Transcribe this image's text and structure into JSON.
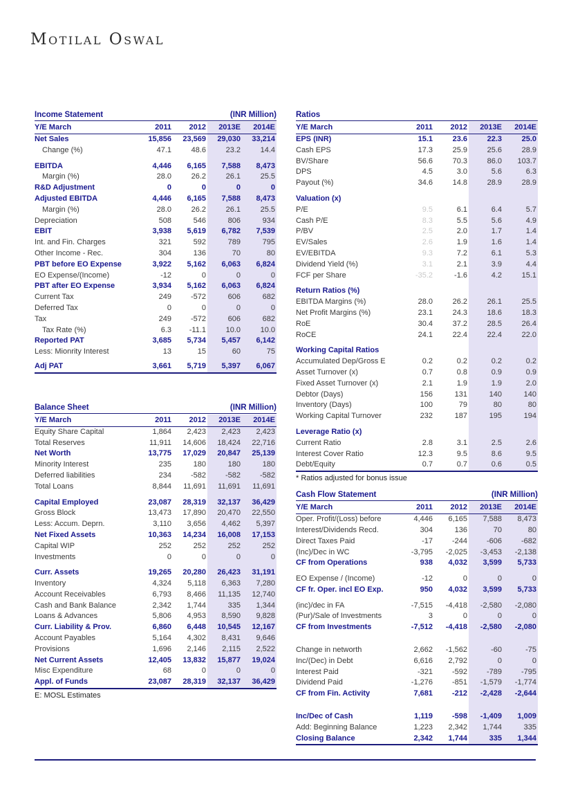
{
  "page": {
    "logo": "Motilal Oswal"
  },
  "colors": {
    "navy_text": "#1a1a8f",
    "rule_line": "#1b1b7c",
    "estimate_band": "#e4e1f4",
    "muted_value": "#c9c9c9",
    "body_text": "#383838"
  },
  "tables": {
    "income": {
      "title": "Income Statement",
      "unit": "(INR Million)",
      "columns": [
        "Y/E March",
        "2011",
        "2012",
        "2013E",
        "2014E"
      ],
      "rows": [
        {
          "label": "Net Sales",
          "values": [
            "15,856",
            "23,569",
            "29,030",
            "33,214"
          ],
          "cls": "bold"
        },
        {
          "label": "Change (%)",
          "values": [
            "47.1",
            "48.6",
            "23.2",
            "14.4"
          ],
          "cls": "indent"
        },
        {
          "cls": "spacer"
        },
        {
          "label": "EBITDA",
          "values": [
            "4,446",
            "6,165",
            "7,588",
            "8,473"
          ],
          "cls": "bold"
        },
        {
          "label": "Margin (%)",
          "values": [
            "28.0",
            "26.2",
            "26.1",
            "25.5"
          ],
          "cls": "indent"
        },
        {
          "label": "R&D Adjustment",
          "values": [
            "0",
            "0",
            "0",
            "0"
          ],
          "cls": "bold"
        },
        {
          "label": "Adjusted EBITDA",
          "values": [
            "4,446",
            "6,165",
            "7,588",
            "8,473"
          ],
          "cls": "bold"
        },
        {
          "label": "Margin (%)",
          "values": [
            "28.0",
            "26.2",
            "26.1",
            "25.5"
          ],
          "cls": "indent"
        },
        {
          "label": "Depreciation",
          "values": [
            "508",
            "546",
            "806",
            "934"
          ],
          "cls": "plain"
        },
        {
          "label": "EBIT",
          "values": [
            "3,938",
            "5,619",
            "6,782",
            "7,539"
          ],
          "cls": "bold"
        },
        {
          "label": "Int. and Fin. Charges",
          "values": [
            "321",
            "592",
            "789",
            "795"
          ],
          "cls": "plain"
        },
        {
          "label": "Other Income - Rec.",
          "values": [
            "304",
            "136",
            "70",
            "80"
          ],
          "cls": "plain"
        },
        {
          "label": "PBT before EO Expense",
          "values": [
            "3,922",
            "5,162",
            "6,063",
            "6,824"
          ],
          "cls": "bold"
        },
        {
          "label": "EO Expense/(Income)",
          "values": [
            "-12",
            "0",
            "0",
            "0"
          ],
          "cls": "plain"
        },
        {
          "label": "PBT after EO Expense",
          "values": [
            "3,934",
            "5,162",
            "6,063",
            "6,824"
          ],
          "cls": "bold"
        },
        {
          "label": "Current Tax",
          "values": [
            "249",
            "-572",
            "606",
            "682"
          ],
          "cls": "plain"
        },
        {
          "label": "Deferred Tax",
          "values": [
            "0",
            "0",
            "0",
            "0"
          ],
          "cls": "plain"
        },
        {
          "label": "Tax",
          "values": [
            "249",
            "-572",
            "606",
            "682"
          ],
          "cls": "plain"
        },
        {
          "label": "Tax Rate (%)",
          "values": [
            "6.3",
            "-11.1",
            "10.0",
            "10.0"
          ],
          "cls": "indent"
        },
        {
          "label": "Reported PAT",
          "values": [
            "3,685",
            "5,734",
            "5,457",
            "6,142"
          ],
          "cls": "bold"
        },
        {
          "label": "Less: Mionrity Interest",
          "values": [
            "13",
            "15",
            "60",
            "75"
          ],
          "cls": "plain"
        },
        {
          "cls": "spacer-xs"
        },
        {
          "label": "Adj PAT",
          "values": [
            "3,661",
            "5,719",
            "5,397",
            "6,067"
          ],
          "cls": "bold"
        }
      ]
    },
    "balance": {
      "title": "Balance Sheet",
      "unit": "(INR Million)",
      "columns": [
        "Y/E March",
        "2011",
        "2012",
        "2013E",
        "2014E"
      ],
      "rows": [
        {
          "label": "Equity Share Capital",
          "values": [
            "1,864",
            "2,423",
            "2,423",
            "2,423"
          ],
          "cls": "plain"
        },
        {
          "label": "Total Reserves",
          "values": [
            "11,911",
            "14,606",
            "18,424",
            "22,716"
          ],
          "cls": "plain"
        },
        {
          "label": "Net Worth",
          "values": [
            "13,775",
            "17,029",
            "20,847",
            "25,139"
          ],
          "cls": "bold"
        },
        {
          "label": "Minority Interest",
          "values": [
            "235",
            "180",
            "180",
            "180"
          ],
          "cls": "plain"
        },
        {
          "label": "Deferred liabilities",
          "values": [
            "234",
            "-582",
            "-582",
            "-582"
          ],
          "cls": "plain"
        },
        {
          "label": "Total Loans",
          "values": [
            "8,844",
            "11,691",
            "11,691",
            "11,691"
          ],
          "cls": "plain"
        },
        {
          "cls": "spacer"
        },
        {
          "label": "Capital Employed",
          "values": [
            "23,087",
            "28,319",
            "32,137",
            "36,429"
          ],
          "cls": "bold"
        },
        {
          "label": "Gross Block",
          "values": [
            "13,473",
            "17,890",
            "20,470",
            "22,550"
          ],
          "cls": "plain"
        },
        {
          "label": "Less: Accum. Deprn.",
          "values": [
            "3,110",
            "3,656",
            "4,462",
            "5,397"
          ],
          "cls": "plain"
        },
        {
          "label": "Net Fixed Assets",
          "values": [
            "10,363",
            "14,234",
            "16,008",
            "17,153"
          ],
          "cls": "bold"
        },
        {
          "label": "Capital WIP",
          "values": [
            "252",
            "252",
            "252",
            "252"
          ],
          "cls": "plain"
        },
        {
          "label": "Investments",
          "values": [
            "0",
            "0",
            "0",
            "0"
          ],
          "cls": "plain"
        },
        {
          "cls": "spacer"
        },
        {
          "label": "Curr. Assets",
          "values": [
            "19,265",
            "20,280",
            "26,423",
            "31,191"
          ],
          "cls": "bold"
        },
        {
          "label": "Inventory",
          "values": [
            "4,324",
            "5,118",
            "6,363",
            "7,280"
          ],
          "cls": "plain"
        },
        {
          "label": "Account Receivables",
          "values": [
            "6,793",
            "8,466",
            "11,135",
            "12,740"
          ],
          "cls": "plain"
        },
        {
          "label": "Cash and Bank Balance",
          "values": [
            "2,342",
            "1,744",
            "335",
            "1,344"
          ],
          "cls": "plain"
        },
        {
          "label": "Loans & Advances",
          "values": [
            "5,806",
            "4,953",
            "8,590",
            "9,828"
          ],
          "cls": "plain"
        },
        {
          "label": "Curr. Liability & Prov.",
          "values": [
            "6,860",
            "6,448",
            "10,545",
            "12,167"
          ],
          "cls": "bold"
        },
        {
          "label": "Account Payables",
          "values": [
            "5,164",
            "4,302",
            "8,431",
            "9,646"
          ],
          "cls": "plain"
        },
        {
          "label": "Provisions",
          "values": [
            "1,696",
            "2,146",
            "2,115",
            "2,522"
          ],
          "cls": "plain"
        },
        {
          "label": "Net Current Assets",
          "values": [
            "12,405",
            "13,832",
            "15,877",
            "19,024"
          ],
          "cls": "bold"
        },
        {
          "label": "Misc Expenditure",
          "values": [
            "68",
            "0",
            "0",
            "0"
          ],
          "cls": "plain"
        },
        {
          "label": "Appl. of Funds",
          "values": [
            "23,087",
            "28,319",
            "32,137",
            "36,429"
          ],
          "cls": "bold"
        }
      ],
      "footnote": "E:  MOSL Estimates"
    },
    "ratios": {
      "title": "Ratios",
      "unit": "",
      "columns": [
        "Y/E March",
        "2011",
        "2012",
        "2013E",
        "2014E"
      ],
      "rows": [
        {
          "label": "EPS (INR)",
          "values": [
            "15.1",
            "23.6",
            "22.3",
            "25.0"
          ],
          "cls": "bold"
        },
        {
          "label": "Cash EPS",
          "values": [
            "17.3",
            "25.9",
            "25.6",
            "28.9"
          ],
          "cls": "plain"
        },
        {
          "label": "BV/Share",
          "values": [
            "56.6",
            "70.3",
            "86.0",
            "103.7"
          ],
          "cls": "plain"
        },
        {
          "label": "DPS",
          "values": [
            "4.5",
            "3.0",
            "5.6",
            "6.3"
          ],
          "cls": "plain"
        },
        {
          "label": "Payout (%)",
          "values": [
            "34.6",
            "14.8",
            "28.9",
            "28.9"
          ],
          "cls": "plain"
        },
        {
          "cls": "spacer"
        },
        {
          "label": "Valuation (x)",
          "values": [],
          "cls": "section"
        },
        {
          "label": "P/E",
          "values": [
            "9.5",
            "6.1",
            "6.4",
            "5.7"
          ],
          "cls": "plain",
          "muted0": true
        },
        {
          "label": "Cash P/E",
          "values": [
            "8.3",
            "5.5",
            "5.6",
            "4.9"
          ],
          "cls": "plain",
          "muted0": true
        },
        {
          "label": "P/BV",
          "values": [
            "2.5",
            "2.0",
            "1.7",
            "1.4"
          ],
          "cls": "plain",
          "muted0": true
        },
        {
          "label": "EV/Sales",
          "values": [
            "2.6",
            "1.9",
            "1.6",
            "1.4"
          ],
          "cls": "plain",
          "muted0": true
        },
        {
          "label": "EV/EBITDA",
          "values": [
            "9.3",
            "7.2",
            "6.1",
            "5.3"
          ],
          "cls": "plain",
          "muted0": true
        },
        {
          "label": "Dividend Yield (%)",
          "values": [
            "3.1",
            "2.1",
            "3.9",
            "4.4"
          ],
          "cls": "plain",
          "muted0": true
        },
        {
          "label": "FCF per Share",
          "values": [
            "-35.2",
            "-1.6",
            "4.2",
            "15.1"
          ],
          "cls": "plain",
          "muted0": true
        },
        {
          "cls": "spacer"
        },
        {
          "label": "Return Ratios (%)",
          "values": [],
          "cls": "section"
        },
        {
          "label": "EBITDA Margins (%)",
          "values": [
            "28.0",
            "26.2",
            "26.1",
            "25.5"
          ],
          "cls": "plain"
        },
        {
          "label": "Net Profit Margins (%)",
          "values": [
            "23.1",
            "24.3",
            "18.6",
            "18.3"
          ],
          "cls": "plain"
        },
        {
          "label": "RoE",
          "values": [
            "30.4",
            "37.2",
            "28.5",
            "26.4"
          ],
          "cls": "plain"
        },
        {
          "label": "RoCE",
          "values": [
            "24.1",
            "22.4",
            "22.4",
            "22.0"
          ],
          "cls": "plain"
        },
        {
          "cls": "spacer"
        },
        {
          "label": "Working Capital Ratios",
          "values": [],
          "cls": "section"
        },
        {
          "label": "Accumulated Dep/Gross E",
          "values": [
            "0.2",
            "0.2",
            "0.2",
            "0.2"
          ],
          "cls": "plain"
        },
        {
          "label": "Asset Turnover (x)",
          "values": [
            "0.7",
            "0.8",
            "0.9",
            "0.9"
          ],
          "cls": "plain"
        },
        {
          "label": "Fixed Asset Turnover (x)",
          "values": [
            "2.1",
            "1.9",
            "1.9",
            "2.0"
          ],
          "cls": "plain"
        },
        {
          "label": "Debtor (Days)",
          "values": [
            "156",
            "131",
            "140",
            "140"
          ],
          "cls": "plain"
        },
        {
          "label": "Inventory (Days)",
          "values": [
            "100",
            "79",
            "80",
            "80"
          ],
          "cls": "plain"
        },
        {
          "label": "Working Capital Turnover",
          "values": [
            "232",
            "187",
            "195",
            "194"
          ],
          "cls": "plain"
        },
        {
          "cls": "spacer"
        },
        {
          "label": "Leverage Ratio (x)",
          "values": [],
          "cls": "section"
        },
        {
          "label": "Current Ratio",
          "values": [
            "2.8",
            "3.1",
            "2.5",
            "2.6"
          ],
          "cls": "plain"
        },
        {
          "label": "Interest Cover Ratio",
          "values": [
            "12.3",
            "9.5",
            "8.6",
            "9.5"
          ],
          "cls": "plain"
        },
        {
          "label": "Debt/Equity",
          "values": [
            "0.7",
            "0.7",
            "0.6",
            "0.5"
          ],
          "cls": "plain"
        }
      ],
      "footnote": "* Ratios adjusted for bonus issue"
    },
    "cashflow": {
      "title": "Cash Flow Statement",
      "unit": "(INR Million)",
      "columns": [
        "Y/E March",
        "2011",
        "2012",
        "2013E",
        "2014E"
      ],
      "rows": [
        {
          "label": "Oper. Profit/(Loss) before",
          "values": [
            "4,446",
            "6,165",
            "7,588",
            "8,473"
          ],
          "cls": "plain"
        },
        {
          "label": "Interest/Dividends Recd.",
          "values": [
            "304",
            "136",
            "70",
            "80"
          ],
          "cls": "plain"
        },
        {
          "label": "Direct Taxes Paid",
          "values": [
            "-17",
            "-244",
            "-606",
            "-682"
          ],
          "cls": "plain"
        },
        {
          "label": "(Inc)/Dec in WC",
          "values": [
            "-3,795",
            "-2,025",
            "-3,453",
            "-2,138"
          ],
          "cls": "plain"
        },
        {
          "label": "CF from Operations",
          "values": [
            "938",
            "4,032",
            "3,599",
            "5,733"
          ],
          "cls": "bold"
        },
        {
          "cls": "spacer"
        },
        {
          "label": "EO Expense / (Income)",
          "values": [
            "-12",
            "0",
            "0",
            "0"
          ],
          "cls": "plain"
        },
        {
          "label": "CF fr. Oper. incl EO Exp.",
          "values": [
            "950",
            "4,032",
            "3,599",
            "5,733"
          ],
          "cls": "bold"
        },
        {
          "cls": "spacer"
        },
        {
          "label": "(inc)/dec in FA",
          "values": [
            "-7,515",
            "-4,418",
            "-2,580",
            "-2,080"
          ],
          "cls": "plain"
        },
        {
          "label": "(Pur)/Sale of Investments",
          "values": [
            "3",
            "0",
            "0",
            "0"
          ],
          "cls": "plain"
        },
        {
          "label": "CF from Investments",
          "values": [
            "-7,512",
            "-4,418",
            "-2,580",
            "-2,080"
          ],
          "cls": "bold"
        },
        {
          "cls": "spacer-lg"
        },
        {
          "label": "Change in networth",
          "values": [
            "2,662",
            "-1,562",
            "-60",
            "-75"
          ],
          "cls": "plain"
        },
        {
          "label": "Inc/(Dec) in Debt",
          "values": [
            "6,616",
            "2,792",
            "0",
            "0"
          ],
          "cls": "plain"
        },
        {
          "label": "Interest Paid",
          "values": [
            "-321",
            "-592",
            "-789",
            "-795"
          ],
          "cls": "plain"
        },
        {
          "label": "Dividend Paid",
          "values": [
            "-1,276",
            "-851",
            "-1,579",
            "-1,774"
          ],
          "cls": "plain"
        },
        {
          "label": "CF from Fin. Activity",
          "values": [
            "7,681",
            "-212",
            "-2,428",
            "-2,644"
          ],
          "cls": "bold"
        },
        {
          "cls": "spacer-lg"
        },
        {
          "label": "Inc/Dec of Cash",
          "values": [
            "1,119",
            "-598",
            "-1,409",
            "1,009"
          ],
          "cls": "bold"
        },
        {
          "label": "Add: Beginning Balance",
          "values": [
            "1,223",
            "2,342",
            "1,744",
            "335"
          ],
          "cls": "plain"
        },
        {
          "label": "Closing Balance",
          "values": [
            "2,342",
            "1,744",
            "335",
            "1,344"
          ],
          "cls": "bold"
        }
      ]
    }
  }
}
